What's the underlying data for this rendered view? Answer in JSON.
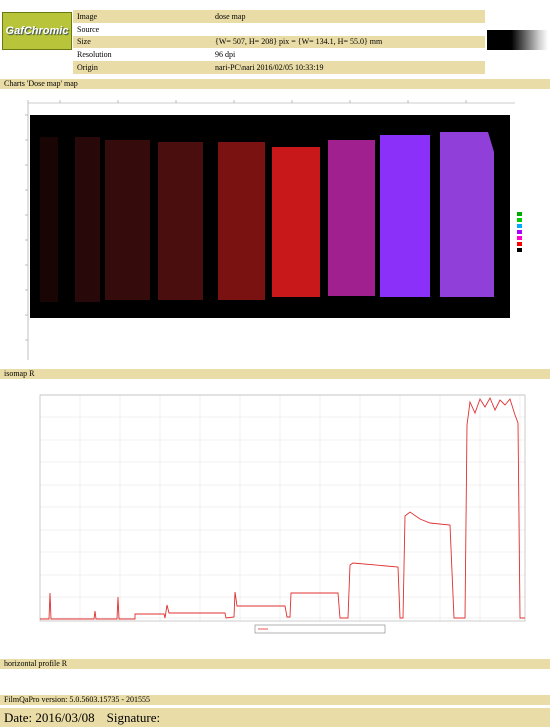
{
  "header": {
    "logo": "GafChromic",
    "info": [
      {
        "label": "Image",
        "value": "dose map"
      },
      {
        "label": "Source"
      },
      {
        "label": "Size",
        "value": "{W= 507, H= 208} pix = {W= 134.1, H= 55.0} mm"
      },
      {
        "label": "Resolution",
        "value": "96 dpi"
      },
      {
        "label": "Origin",
        "value": "nari-PC\\nari 2016/02/05 10:33:19"
      }
    ]
  },
  "sections": [
    {
      "title": "Charts 'Dose map' map"
    },
    {
      "title": "isomap R"
    },
    {
      "title": "horizontal profile R"
    }
  ],
  "footer": {
    "version": "FilmQaPro version: 5.0.5603.15735 - 201555",
    "date": "Date: 2016/03/08",
    "signature": "Signature:"
  }
}
